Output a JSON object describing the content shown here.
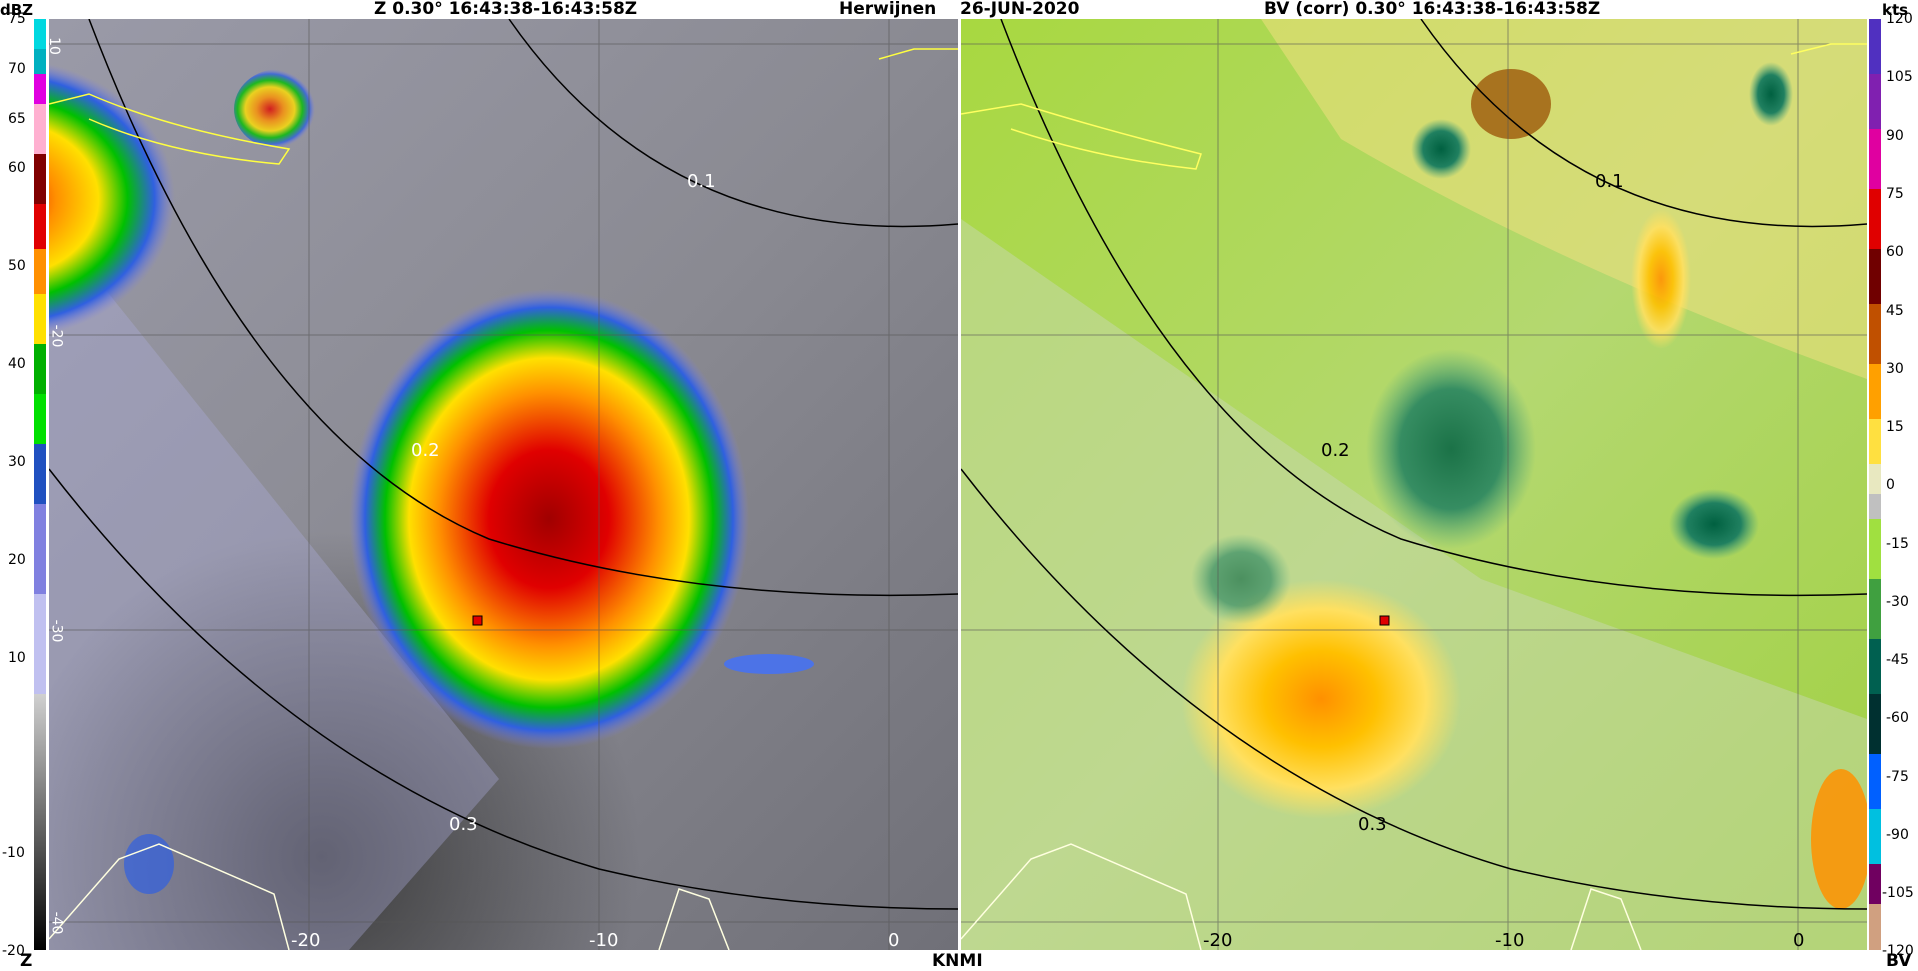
{
  "header": {
    "left_title": "Z  0.30°  16:43:38-16:43:58Z",
    "station": "Herwijnen",
    "date": "26-JUN-2020",
    "right_title": "BV (corr)  0.30°  16:43:38-16:43:58Z"
  },
  "left_colorbar": {
    "unit": "dBZ",
    "footer": "Z",
    "ticks": [
      "75",
      "70",
      "65",
      "60",
      "50",
      "40",
      "30",
      "20",
      "10",
      "-10",
      "-20"
    ]
  },
  "right_colorbar": {
    "unit": "kts",
    "footer": "BV",
    "ticks": [
      "120",
      "105",
      "90",
      "75",
      "60",
      "45",
      "30",
      "15",
      "0",
      "-15",
      "-30",
      "-45",
      "-60",
      "-75",
      "-90",
      "-105",
      "-120"
    ]
  },
  "footer": {
    "center": "KNMI"
  },
  "left_panel": {
    "rotated_labels": [
      "10",
      "-20",
      "-30",
      "-40"
    ],
    "axis_labels": [
      "-20",
      "-10",
      "0"
    ],
    "ring_labels": [
      "0.1",
      "0.2",
      "0.3"
    ]
  },
  "right_panel": {
    "axis_labels": [
      "-20",
      "-10",
      "0"
    ],
    "ring_labels": [
      "0.1",
      "0.2",
      "0.3"
    ]
  },
  "colors": {
    "reflectivity_scale": [
      "#00e0e0",
      "#ff00ff",
      "#ffc0d0",
      "#800000",
      "#ff0000",
      "#ffa000",
      "#ffff00",
      "#00c000",
      "#00ff00",
      "#0040c0",
      "#4080ff",
      "#a0a0ff",
      "#e0e0ff",
      "#000000"
    ],
    "velocity_scale": [
      "#5020c0",
      "#a000a0",
      "#ff0080",
      "#ff0000",
      "#800000",
      "#d06000",
      "#ffb000",
      "#ffe040",
      "#e0e0a0",
      "#c0c0c0",
      "#a0e040",
      "#60c040",
      "#008060",
      "#004040",
      "#000080",
      "#0080ff",
      "#00c0ff",
      "#600080",
      "#d0a080"
    ]
  }
}
